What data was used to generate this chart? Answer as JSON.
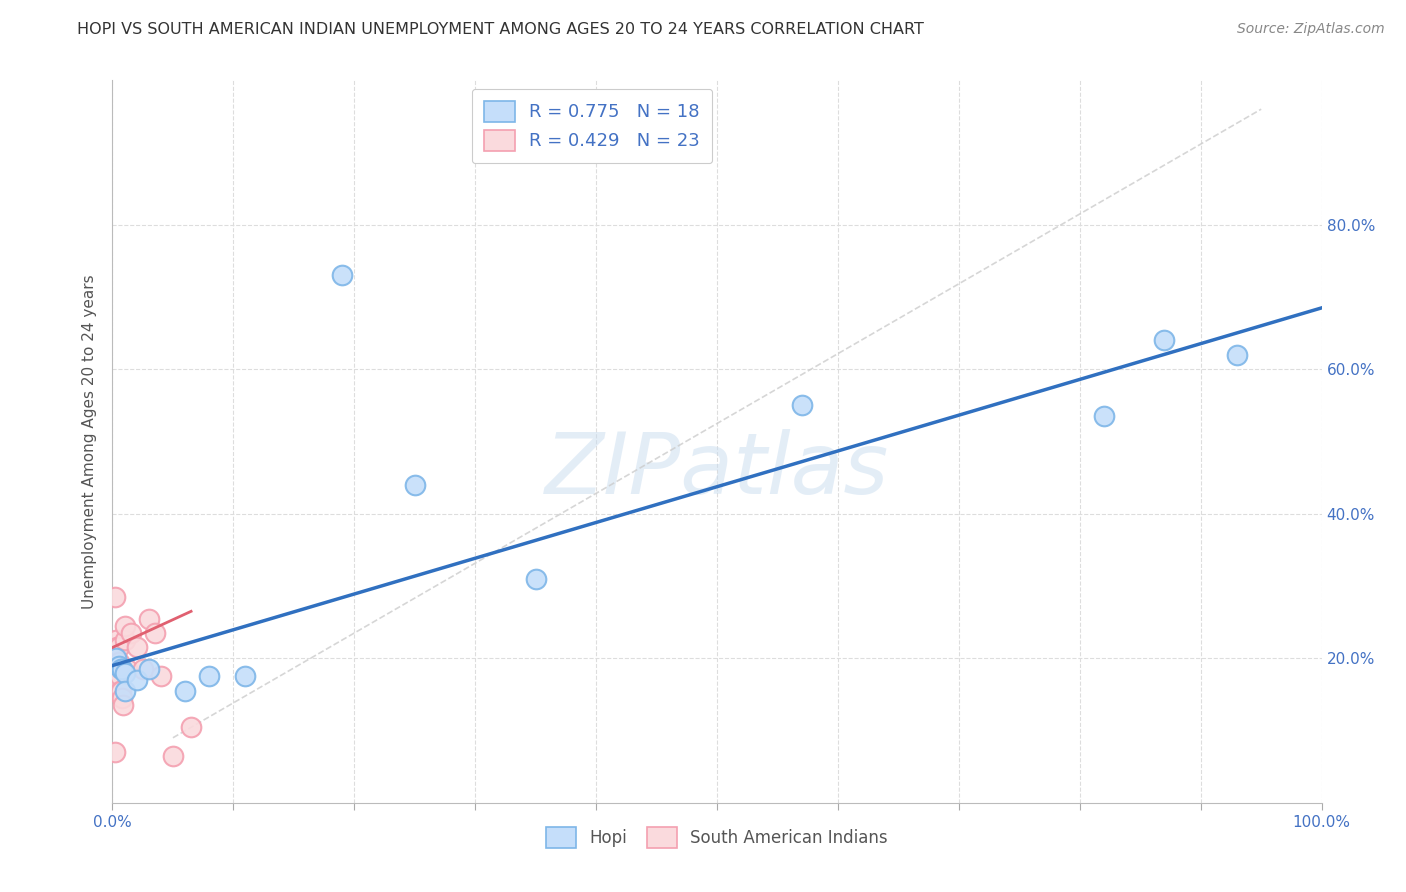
{
  "title": "HOPI VS SOUTH AMERICAN INDIAN UNEMPLOYMENT AMONG AGES 20 TO 24 YEARS CORRELATION CHART",
  "source": "Source: ZipAtlas.com",
  "ylabel": "Unemployment Among Ages 20 to 24 years",
  "xlim": [
    0,
    1.0
  ],
  "ylim": [
    0,
    1.0
  ],
  "xticks": [
    0.0,
    0.1,
    0.2,
    0.3,
    0.4,
    0.5,
    0.6,
    0.7,
    0.8,
    0.9,
    1.0
  ],
  "xticklabels": [
    "0.0%",
    "",
    "",
    "",
    "",
    "",
    "",
    "",
    "",
    "",
    "100.0%"
  ],
  "ytick_positions": [
    0.2,
    0.4,
    0.6,
    0.8
  ],
  "yticklabels": [
    "20.0%",
    "40.0%",
    "60.0%",
    "80.0%"
  ],
  "hopi_color": "#7EB6E8",
  "hopi_fill": "#C5DEFA",
  "pink_color": "#F4A0B0",
  "pink_fill": "#FADADD",
  "trend_blue": "#3070C0",
  "trend_pink": "#E06070",
  "trend_gray_dashed": "#CCCCCC",
  "legend_R_blue": "0.775",
  "legend_N_blue": "18",
  "legend_R_pink": "0.429",
  "legend_N_pink": "23",
  "hopi_x": [
    0.003,
    0.005,
    0.007,
    0.008,
    0.01,
    0.01,
    0.02,
    0.03,
    0.06,
    0.08,
    0.11,
    0.19,
    0.35,
    0.57,
    0.82,
    0.87,
    0.93,
    0.25
  ],
  "hopi_y": [
    0.2,
    0.19,
    0.185,
    0.185,
    0.18,
    0.155,
    0.17,
    0.185,
    0.155,
    0.175,
    0.175,
    0.73,
    0.31,
    0.55,
    0.535,
    0.64,
    0.62,
    0.44
  ],
  "pink_x": [
    0.002,
    0.003,
    0.004,
    0.004,
    0.005,
    0.005,
    0.006,
    0.006,
    0.007,
    0.008,
    0.009,
    0.01,
    0.01,
    0.012,
    0.015,
    0.02,
    0.025,
    0.03,
    0.035,
    0.04,
    0.05,
    0.065,
    0.002
  ],
  "pink_y": [
    0.285,
    0.225,
    0.215,
    0.165,
    0.215,
    0.195,
    0.175,
    0.155,
    0.155,
    0.145,
    0.135,
    0.225,
    0.245,
    0.185,
    0.235,
    0.215,
    0.185,
    0.255,
    0.235,
    0.175,
    0.065,
    0.105,
    0.07
  ],
  "watermark": "ZIPatlas",
  "background_color": "#FFFFFF",
  "grid_color": "#DDDDDD",
  "blue_line_x0": 0.0,
  "blue_line_y0": 0.19,
  "blue_line_x1": 1.0,
  "blue_line_y1": 0.685,
  "pink_line_x0": 0.0,
  "pink_line_y0": 0.215,
  "pink_line_x1": 0.065,
  "pink_line_y1": 0.265,
  "gray_line_x0": 0.05,
  "gray_line_y0": 0.09,
  "gray_line_x1": 0.95,
  "gray_line_y1": 0.96
}
